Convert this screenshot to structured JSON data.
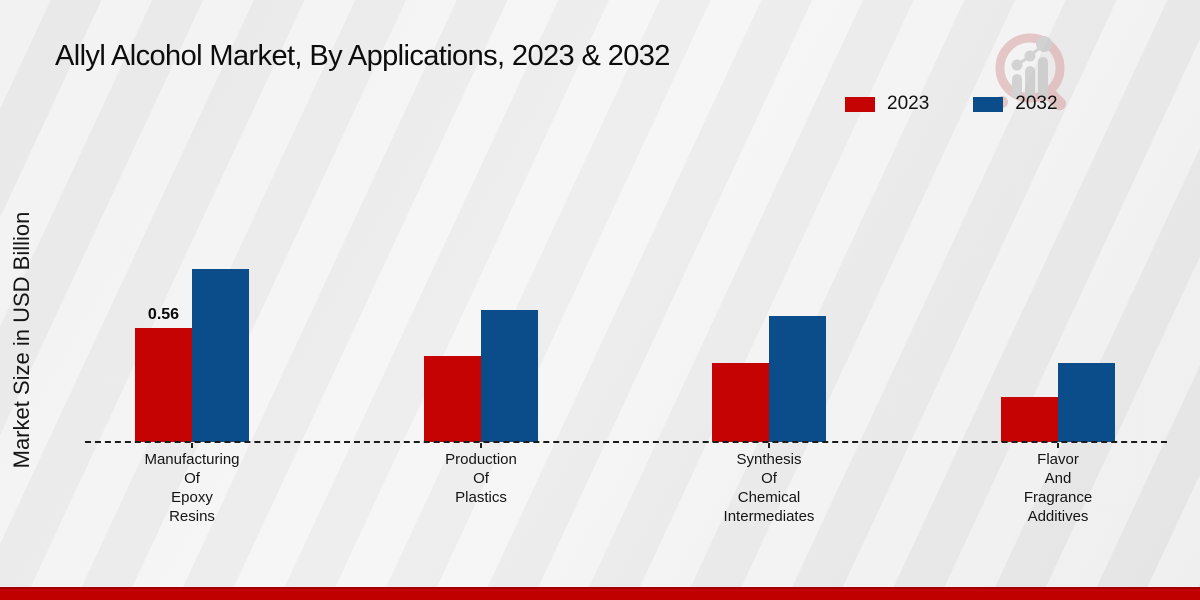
{
  "title": "Allyl Alcohol Market, By Applications, 2023 & 2032",
  "ylabel": "Market Size in USD Billion",
  "watermark_icon": "magnifier-bar-chart-logo",
  "colors": {
    "series_2023": "#c60303",
    "series_2032": "#0b4d8a",
    "footer_bar": "#c00000",
    "baseline": "#1c1c1c"
  },
  "chart_data": {
    "type": "bar",
    "title": "Allyl Alcohol Market, By Applications, 2023 & 2032",
    "xlabel": "",
    "ylabel": "Market Size in USD Billion",
    "ylim": [
      0,
      1.0
    ],
    "grid": false,
    "legend_position": "top-right",
    "baseline_style": "dashed",
    "categories": [
      "Manufacturing\nOf\nEpoxy\nResins",
      "Production\nOf\nPlastics",
      "Synthesis\nOf\nChemical\nIntermediates",
      "Flavor\nAnd\nFragrance\nAdditives"
    ],
    "series": [
      {
        "name": "2023",
        "color": "#c60303",
        "values": [
          0.56,
          0.42,
          0.39,
          0.22
        ]
      },
      {
        "name": "2032",
        "color": "#0b4d8a",
        "values": [
          0.85,
          0.65,
          0.62,
          0.39
        ]
      }
    ],
    "annotations": [
      {
        "series": 0,
        "category": 0,
        "text": "0.56"
      }
    ]
  }
}
